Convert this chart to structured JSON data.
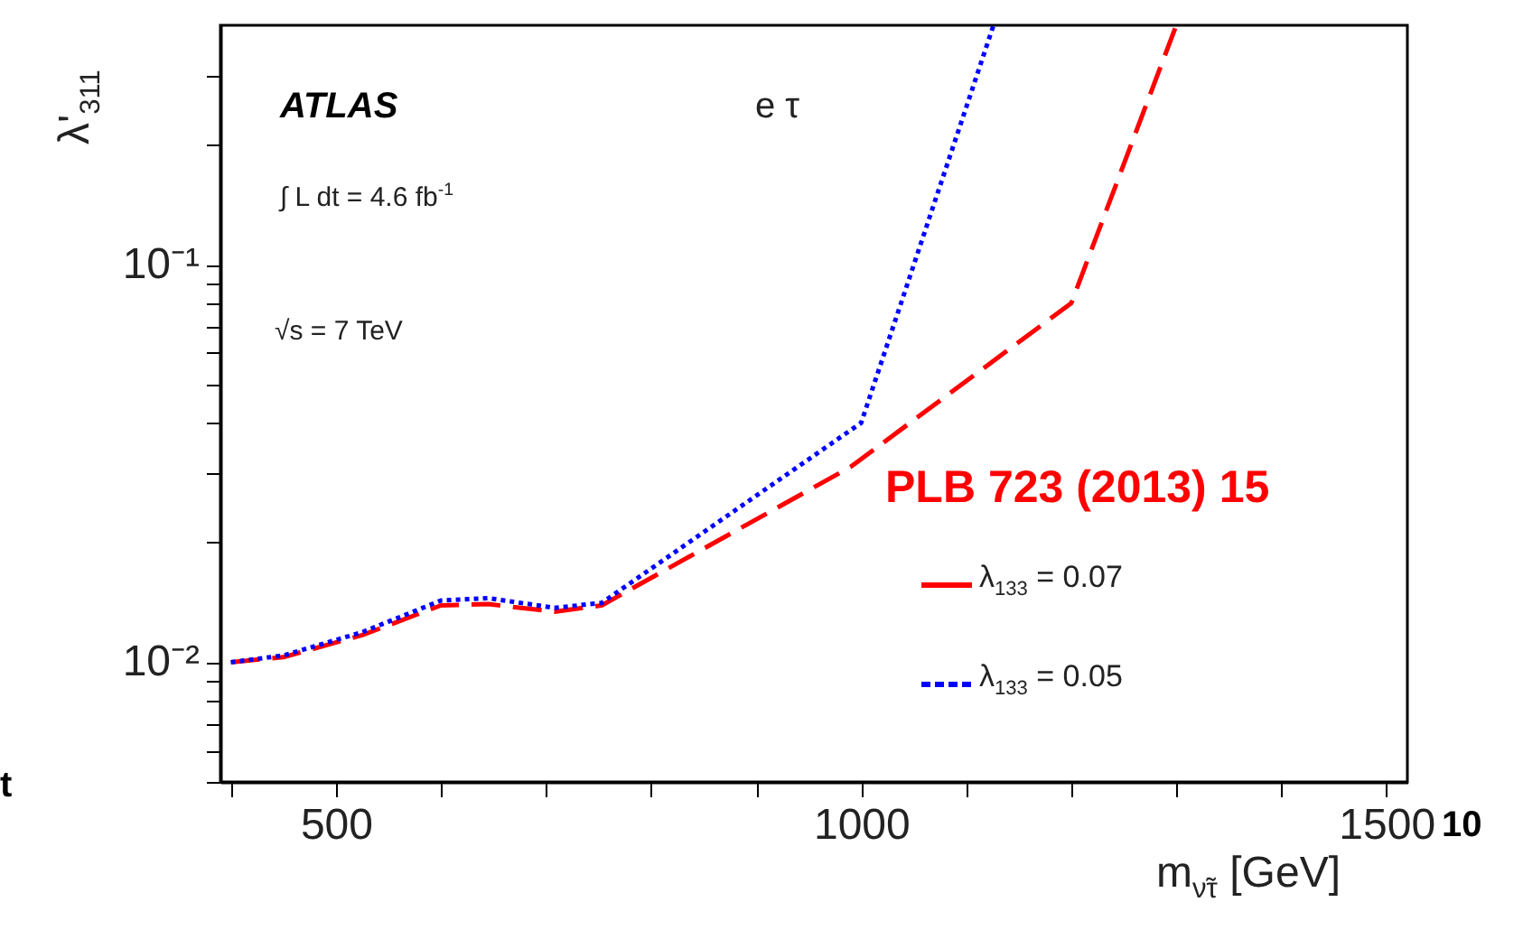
{
  "chart_data": {
    "type": "line",
    "xlabel": "m$_{ν̃τ}$ [GeV]",
    "ylabel": "λ'$_{311}$",
    "log": "y",
    "xlim": [
      390,
      1520
    ],
    "xticks": [
      {
        "value": 400,
        "label": null
      },
      500,
      {
        "value": 600,
        "label": null
      },
      {
        "value": 700,
        "label": null
      },
      {
        "value": 800,
        "label": null
      },
      {
        "value": 900,
        "label": null
      },
      1000,
      {
        "value": 1100,
        "label": null
      },
      {
        "value": 1200,
        "label": null
      },
      {
        "value": 1300,
        "label": null
      },
      {
        "value": 1400,
        "label": null
      },
      1500
    ],
    "ylim": [
      0.005,
      0.4
    ],
    "yticks": [
      {
        "value": 0.005,
        "label": null
      },
      {
        "value": 0.006,
        "label": null
      },
      {
        "value": 0.007,
        "label": null
      },
      {
        "value": 0.008,
        "label": null
      },
      {
        "value": 0.009,
        "label": null
      },
      {
        "value": 0.01,
        "label": "10⁻²"
      },
      {
        "value": 0.02,
        "label": null
      },
      {
        "value": 0.03,
        "label": null
      },
      {
        "value": 0.04,
        "label": null
      },
      {
        "value": 0.05,
        "label": null
      },
      {
        "value": 0.06,
        "label": null
      },
      {
        "value": 0.07,
        "label": null
      },
      {
        "value": 0.08,
        "label": null
      },
      {
        "value": 0.09,
        "label": null
      },
      {
        "value": 0.1,
        "label": "10⁻¹"
      },
      {
        "value": 0.2,
        "label": null
      },
      {
        "value": 0.3,
        "label": null
      }
    ],
    "legend": "bottom right",
    "series": [
      {
        "name": "λ$_{133}$ = 0.07",
        "color": "#ff0000",
        "line_style": "dashed",
        "x": [
          400,
          450,
          525,
          600,
          645,
          708,
          753,
          990,
          1200,
          1300
        ],
        "values": [
          0.01,
          0.0103,
          0.0117,
          0.0139,
          0.014,
          0.0134,
          0.0139,
          0.031,
          0.08,
          0.4
        ]
      },
      {
        "name": "λ$_{133}$ = 0.05",
        "color": "#0000ff",
        "line_style": "dotted",
        "x": [
          400,
          450,
          525,
          600,
          645,
          708,
          753,
          1000,
          1126
        ],
        "values": [
          0.01,
          0.0104,
          0.0119,
          0.0143,
          0.0145,
          0.0137,
          0.0141,
          0.04,
          0.4
        ]
      }
    ],
    "annotations": [
      "ATLAS",
      "∫ L dt = 4.6 fb$^{-1}$",
      "√s = 7 TeV",
      "e τ",
      "PLB 723 (2013) 15",
      "t",
      "10"
    ]
  }
}
